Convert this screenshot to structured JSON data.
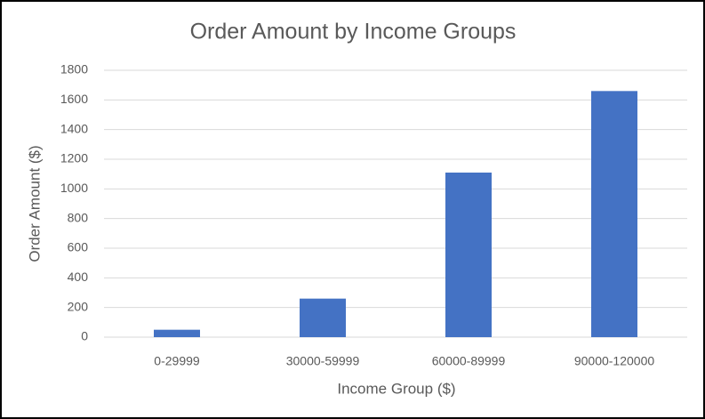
{
  "chart_data": {
    "type": "bar",
    "title": "Order Amount by Income Groups",
    "x_label": "Income Group ($)",
    "y_label": "Order Amount ($)",
    "categories": [
      "0-29999",
      "30000-59999",
      "60000-89999",
      "90000-120000"
    ],
    "values": [
      50,
      260,
      1110,
      1660
    ],
    "color": "#4472c4",
    "ylim": [
      0,
      1800
    ],
    "yticks": [
      0,
      200,
      400,
      600,
      800,
      1000,
      1200,
      1400,
      1600,
      1800
    ],
    "grid": true
  }
}
